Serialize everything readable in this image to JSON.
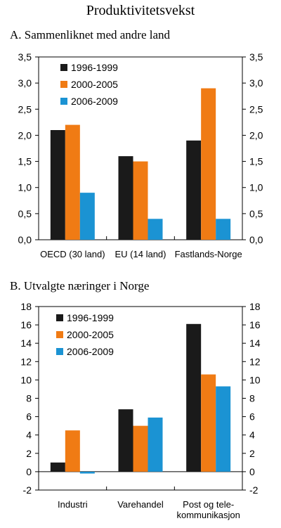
{
  "figure_title": "Produktivitetsvekst",
  "colors": {
    "series": [
      "#1a1a1a",
      "#f07b14",
      "#1b93d3"
    ]
  },
  "chart_data": [
    {
      "type": "bar",
      "title": "A.  Sammenliknet med andre land",
      "categories": [
        "OECD (30 land)",
        "EU (14 land)",
        "Fastlands-Norge"
      ],
      "series": [
        {
          "name": "1996-1999",
          "values": [
            2.1,
            1.6,
            1.9
          ]
        },
        {
          "name": "2000-2005",
          "values": [
            2.2,
            1.5,
            2.9
          ]
        },
        {
          "name": "2006-2009",
          "values": [
            0.9,
            0.4,
            0.4
          ]
        }
      ],
      "ylim": [
        0,
        3.5
      ],
      "yticks": [
        "0,0",
        "0,5",
        "1,0",
        "1,5",
        "2,0",
        "2,5",
        "3,0",
        "3,5"
      ],
      "right_axis": true,
      "grid": false,
      "legend_position": "top-left"
    },
    {
      "type": "bar",
      "title": "B.  Utvalgte næringer i Norge",
      "categories": [
        "Industri",
        "Varehandel",
        "Post og tele-\nkommunikasjon"
      ],
      "series": [
        {
          "name": "1996-1999",
          "values": [
            1.0,
            6.8,
            16.1
          ]
        },
        {
          "name": "2000-2005",
          "values": [
            4.5,
            5.0,
            10.6
          ]
        },
        {
          "name": "2006-2009",
          "values": [
            -0.2,
            5.9,
            9.3
          ]
        }
      ],
      "ylim": [
        -2,
        18
      ],
      "yticks": [
        "-2",
        "0",
        "2",
        "4",
        "6",
        "8",
        "10",
        "12",
        "14",
        "16",
        "18"
      ],
      "right_axis": true,
      "grid": false,
      "legend_position": "top-left"
    }
  ]
}
